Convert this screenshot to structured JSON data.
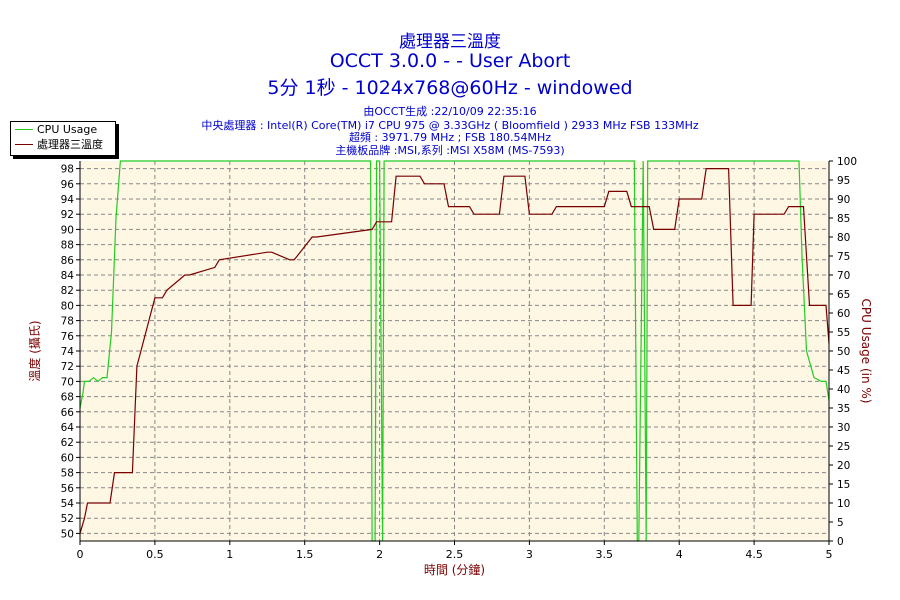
{
  "titles": {
    "line1": "處理器三溫度",
    "line2": "OCCT 3.0.0 -  - User Abort",
    "line3": "5分 1秒 - 1024x768@60Hz - windowed"
  },
  "info": {
    "generated": "由OCCT生成 :22/10/09 22:35:16",
    "cpu": "中央處理器 : Intel(R) Core(TM) i7 CPU 975 @ 3.33GHz ( Bloomfield ) 2933 MHz FSB 133MHz",
    "oc": "超頻 : 3971.79 MHz ; FSB 180.54MHz",
    "board": "主機板品牌 :MSI,系列 :MSI X58M (MS-7593)"
  },
  "colors": {
    "temp": "#7a0000",
    "cpu": "#22cc22",
    "plotBg": "#fdf7e4",
    "axisText": "#7a0000",
    "tickText": "#000000"
  },
  "chart_data": {
    "type": "line",
    "xlabel": "時間 (分鐘)",
    "ylabel_left": "溫度 (攝氏)",
    "ylabel_right": "CPU Usage (in %)",
    "xlim": [
      0,
      5
    ],
    "ylim_left": [
      49,
      99
    ],
    "ylim_right": [
      0,
      100
    ],
    "x_ticks": [
      "0",
      "0.5",
      "1",
      "1.5",
      "2",
      "2.5",
      "3",
      "3.5",
      "4",
      "4.5",
      "5"
    ],
    "x_tick_values": [
      0,
      0.5,
      1,
      1.5,
      2,
      2.5,
      3,
      3.5,
      4,
      4.5,
      5
    ],
    "y_left_ticks": [
      50,
      52,
      54,
      56,
      58,
      60,
      62,
      64,
      66,
      68,
      70,
      72,
      74,
      76,
      78,
      80,
      82,
      84,
      86,
      88,
      90,
      92,
      94,
      96,
      98
    ],
    "y_right_ticks": [
      0,
      5,
      10,
      15,
      20,
      25,
      30,
      35,
      40,
      45,
      50,
      55,
      60,
      65,
      70,
      75,
      80,
      85,
      90,
      95,
      100
    ],
    "grid": true,
    "legend": "top-left",
    "series": [
      {
        "name": "CPU Usage",
        "axis": "right",
        "x": [
          0,
          0.02,
          0.03,
          0.06,
          0.09,
          0.12,
          0.15,
          0.18,
          0.21,
          0.24,
          0.27,
          0.3,
          0.5,
          1,
          1.5,
          1.94,
          1.95,
          1.97,
          1.98,
          2.0,
          2.02,
          2.03,
          2.1,
          2.5,
          3,
          3.5,
          3.7,
          3.72,
          3.73,
          3.76,
          3.78,
          3.79,
          3.85,
          4,
          4.5,
          4.8,
          4.82,
          4.85,
          4.9,
          4.95,
          4.98,
          5.0
        ],
        "values": [
          35,
          39,
          42,
          42,
          43,
          42,
          43,
          43,
          55,
          85,
          100,
          100,
          100,
          100,
          100,
          100,
          0,
          0,
          100,
          100,
          0,
          100,
          100,
          100,
          100,
          100,
          100,
          0,
          0,
          100,
          0,
          100,
          100,
          100,
          100,
          100,
          75,
          50,
          43,
          42,
          42,
          37
        ]
      },
      {
        "name": "處理器三溫度",
        "axis": "left",
        "x": [
          0,
          0.03,
          0.05,
          0.07,
          0.2,
          0.23,
          0.35,
          0.38,
          0.5,
          0.55,
          0.58,
          0.7,
          0.73,
          0.9,
          0.93,
          1.25,
          1.28,
          1.4,
          1.43,
          1.55,
          1.58,
          1.95,
          1.98,
          2.08,
          2.11,
          2.27,
          2.3,
          2.43,
          2.46,
          2.6,
          2.63,
          2.8,
          2.83,
          2.97,
          3.0,
          3.15,
          3.18,
          3.5,
          3.53,
          3.65,
          3.68,
          3.8,
          3.83,
          3.97,
          4.0,
          4.15,
          4.18,
          4.33,
          4.36,
          4.48,
          4.5,
          4.7,
          4.73,
          4.83,
          4.87,
          4.98,
          5.0
        ],
        "values": [
          50,
          52,
          54,
          54,
          54,
          58,
          58,
          72,
          81,
          81,
          82,
          84,
          84,
          85,
          86,
          87,
          87,
          86,
          86,
          89,
          89,
          90,
          91,
          91,
          97,
          97,
          96,
          96,
          93,
          93,
          92,
          92,
          97,
          97,
          92,
          92,
          93,
          93,
          95,
          95,
          93,
          93,
          90,
          90,
          94,
          94,
          98,
          98,
          80,
          80,
          92,
          92,
          93,
          93,
          80,
          80,
          75
        ]
      }
    ]
  }
}
